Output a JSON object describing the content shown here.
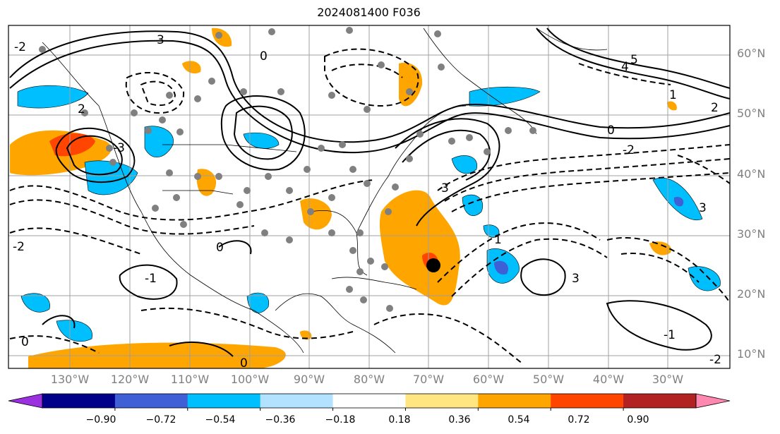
{
  "title": "2024081400 F036",
  "lat_labels": [
    "60°N",
    "50°N",
    "40°N",
    "30°N",
    "20°N",
    "10°N"
  ],
  "lon_labels": [
    "130°W",
    "120°W",
    "110°W",
    "100°W",
    "90°W",
    "80°W",
    "70°W",
    "60°W",
    "50°W",
    "40°W",
    "30°W"
  ],
  "colorbar": {
    "ticks": [
      "−0.90",
      "−0.72",
      "−0.54",
      "−0.36",
      "−0.18",
      "0.18",
      "0.36",
      "0.54",
      "0.72",
      "0.90"
    ],
    "colors": [
      "#9b30e0",
      "#00008b",
      "#3f5fd6",
      "#00bfff",
      "#b2e2ff",
      "#ffffff",
      "#ffe680",
      "#ffa500",
      "#ff4500",
      "#b22222",
      "#ff88b0"
    ]
  },
  "contour_labels": [
    "3",
    "0",
    "-2",
    "2",
    "-3",
    "5",
    "4",
    "1",
    "-1",
    "-2",
    "3",
    "0",
    "-2",
    "2",
    "1",
    "0",
    "-1",
    "2",
    "-2"
  ]
}
